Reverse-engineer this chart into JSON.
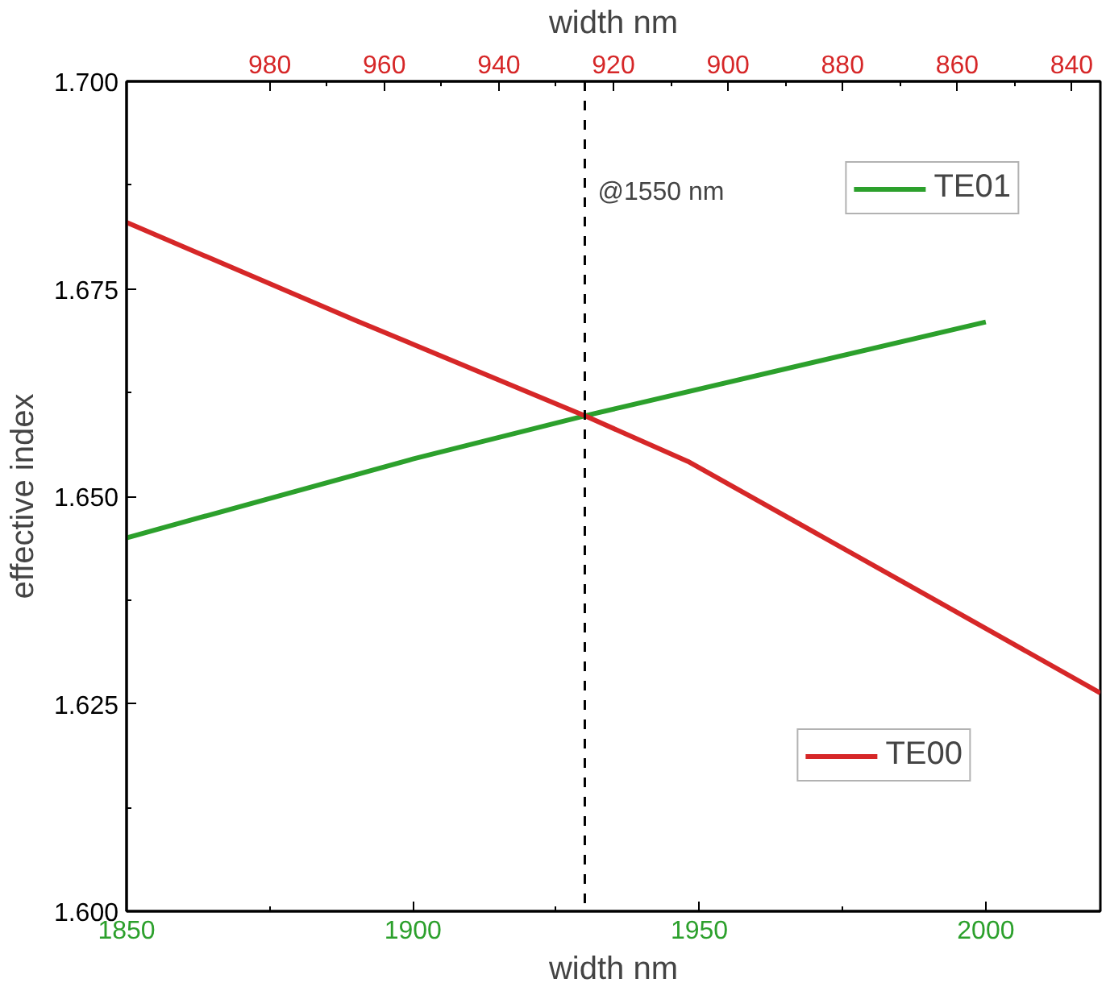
{
  "chart_data": {
    "type": "line",
    "xlabel": "width nm",
    "x2label": "width nm",
    "ylabel": "effective index",
    "xlim": [
      1850,
      2020
    ],
    "xticks": [
      1850,
      1900,
      1950,
      2000
    ],
    "x2lim": [
      1005,
      835
    ],
    "x2ticks": [
      980,
      960,
      940,
      920,
      900,
      880,
      860,
      840
    ],
    "ylim": [
      1.6,
      1.7
    ],
    "yticks": [
      {
        "value": 1.6,
        "label": "1.600"
      },
      {
        "value": 1.625,
        "label": "1.625"
      },
      {
        "value": 1.65,
        "label": "1.650"
      },
      {
        "value": 1.675,
        "label": "1.675"
      },
      {
        "value": 1.7,
        "label": "1.700"
      }
    ],
    "series": [
      {
        "name": "TE01",
        "color": "#2ca02c",
        "x": [
          1850,
          1900,
          1930,
          2000
        ],
        "values": [
          1.645,
          1.6545,
          1.6597,
          1.671
        ]
      },
      {
        "name": "TE00",
        "color": "#d62728",
        "axis": "x2",
        "x": [
          1005,
          965,
          925,
          907,
          870,
          835
        ],
        "values": [
          1.683,
          1.6712,
          1.6597,
          1.6542,
          1.6399,
          1.6263
        ]
      }
    ],
    "ref_lines": [
      {
        "axis": "x",
        "value": 1930,
        "label": "@1550 nm",
        "color": "#000000",
        "line_style": "dashed"
      }
    ],
    "grid": false,
    "legend": "right",
    "line_style": "solid",
    "marker": "none"
  }
}
